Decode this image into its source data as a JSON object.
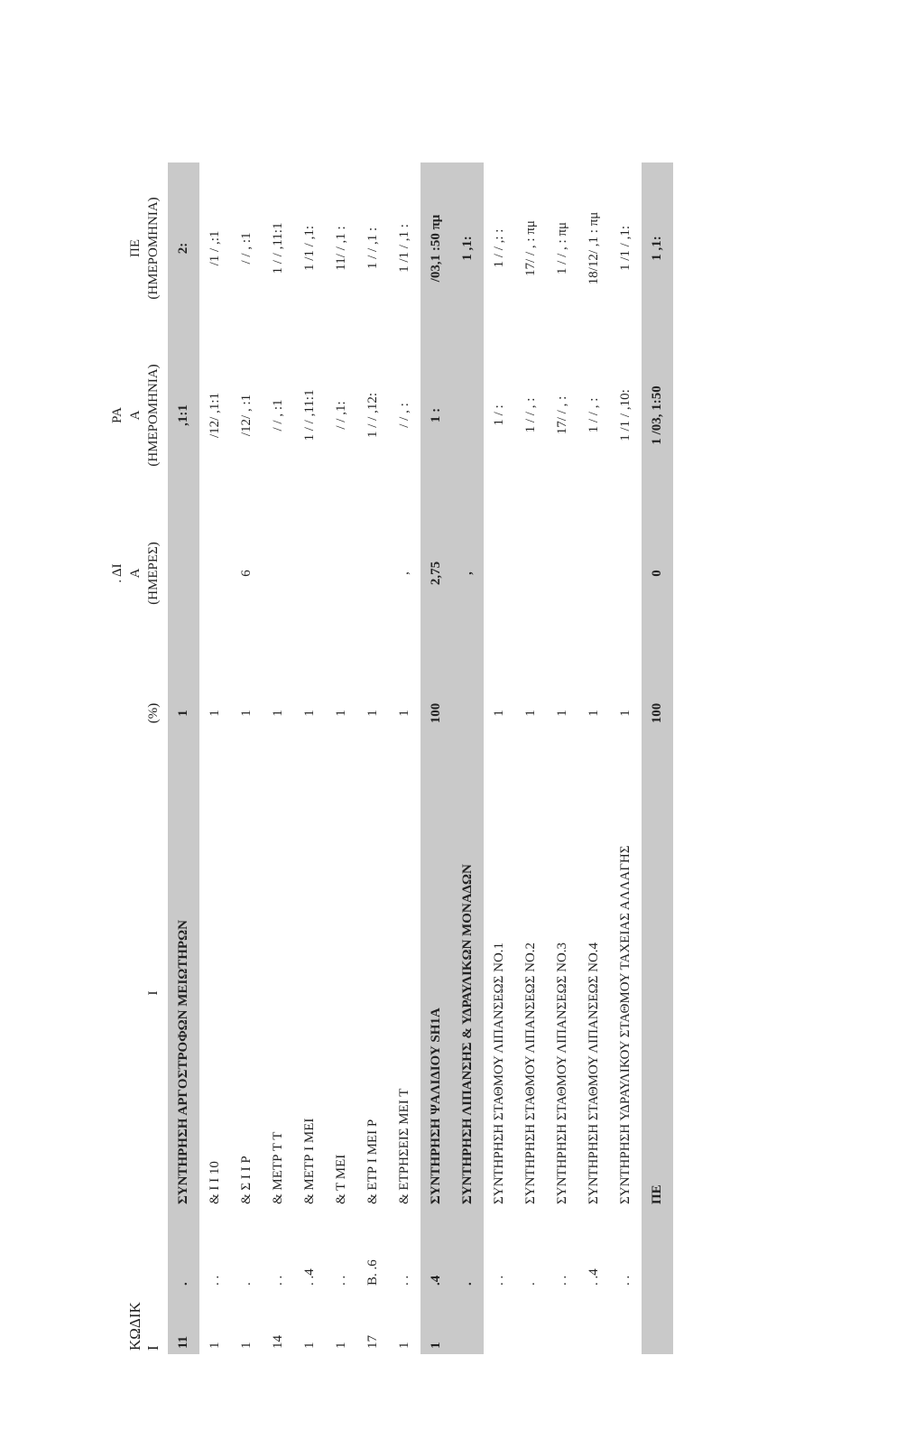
{
  "header": {
    "cells": [
      [
        "ΚΩΔΙΚ",
        "Ι"
      ],
      null,
      [
        "Ι"
      ],
      [
        "(%)"
      ],
      [
        ". ΔΙ",
        "Α",
        "(ΗΜΕΡΕΣ)"
      ],
      [
        "ΡΑ",
        "Α",
        "(ΗΜΕΡΟΜΗΝΙΑ)"
      ],
      [
        "ΠΕ",
        "(ΗΜΕΡΟΜΗΝΙΑ)"
      ]
    ]
  },
  "rows": [
    {
      "shaded": true,
      "cells": [
        "11",
        ".",
        "ΣΥΝΤΗΡΗΣΗ ΑΡΓΟΣΤΡΟΦΩΝ ΜΕΙΩΤΗΡΩΝ",
        "1",
        null,
        ",1:1",
        "2:"
      ]
    },
    {
      "cells": [
        "1",
        ". .",
        "& Ι Ι 10",
        "1",
        null,
        "/12/ ,1:1",
        "/1 / ,:1"
      ]
    },
    {
      "cells": [
        "1",
        ".",
        "& Σ Ι Ι Ρ",
        "1",
        "6",
        "/12/ , :1",
        "/ / , :1"
      ]
    },
    {
      "cells": [
        "14",
        ". .",
        "& ΜΕΤΡ Τ Τ",
        "1",
        null,
        "/ / , :1",
        "1 / / ,11:1"
      ]
    },
    {
      "cells": [
        "1",
        ". .4",
        "& ΜΕΤΡ Ι ΜΕΙ",
        "1",
        null,
        "1 / / ,11:1",
        "1 /1 / ,1:"
      ]
    },
    {
      "cells": [
        "1",
        ". .",
        "& Τ ΜΕΙ",
        "1",
        null,
        "/ / ,1:",
        "11/ / ,1 :"
      ]
    },
    {
      "cells": [
        "17",
        "Β. .6",
        "& ΕΤΡ Ι ΜΕΙ Ρ",
        "1",
        null,
        "1 / / ,12:",
        "1 / / ,1 :"
      ]
    },
    {
      "cells": [
        "1",
        ". .",
        "& ΕΤΡΗΣΕΙΣ ΜΕΙ Τ",
        "1",
        ",",
        "/ / , :",
        "1 /1 / ,1 :"
      ]
    },
    {
      "shaded": true,
      "cells": [
        "1",
        ".4",
        "ΣΥΝΤΗΡΗΣΗ ΨΑΛΙΔΙΟΥ SH1A",
        "100",
        "2,75",
        "1 :",
        "/03,1 :50 πμ"
      ]
    },
    {
      "shaded": true,
      "cells": [
        null,
        ".",
        "ΣΥΝΤΗΡΗΣΗ ΛΙΠΑΝΣΗΣ & ΥΔΡΑΥΛΙΚΩΝ ΜΟΝΑΔΩΝ",
        null,
        ",",
        null,
        "1 ,1:"
      ]
    },
    {
      "cells": [
        null,
        ". .",
        "ΣΥΝΤΗΡΗΣΗ ΣΤΑΘΜΟΥ ΛΙΠΑΝΣΕΩΣ ΝΟ.1",
        "1",
        null,
        "1 / :",
        "1 / / ,: :"
      ]
    },
    {
      "cells": [
        null,
        ".",
        "ΣΥΝΤΗΡΗΣΗ ΣΤΑΘΜΟΥ ΛΙΠΑΝΣΕΩΣ ΝΟ.2",
        "1",
        null,
        "1 / / , :",
        "17/ / , : πμ"
      ]
    },
    {
      "cells": [
        null,
        ". .",
        "ΣΥΝΤΗΡΗΣΗ ΣΤΑΘΜΟΥ ΛΙΠΑΝΣΕΩΣ ΝΟ.3",
        "1",
        null,
        "17/ / , :",
        "1 / / , : πμ"
      ]
    },
    {
      "cells": [
        null,
        ". .4",
        "ΣΥΝΤΗΡΗΣΗ ΣΤΑΘΜΟΥ ΛΙΠΑΝΣΕΩΣ ΝΟ.4",
        "1",
        null,
        "1 / / , :",
        "18/12/ ,1 : πμ"
      ]
    },
    {
      "cells": [
        null,
        ". .",
        "ΣΥΝΤΗΡΗΣΗ ΥΔΡΑΥΛΙΚΟΥ ΣΤΑΘΜΟΥ ΤΑΧΕΙΑΣ ΑΛΛΑΓΗΣ",
        "1",
        null,
        "1 /1 / ,10:",
        "1 /1 / ,1:"
      ]
    },
    {
      "shaded": true,
      "cells": [
        null,
        null,
        "ΠΕ",
        "100",
        "0",
        "1 /03, 1:50",
        "1 ,1:"
      ]
    }
  ]
}
